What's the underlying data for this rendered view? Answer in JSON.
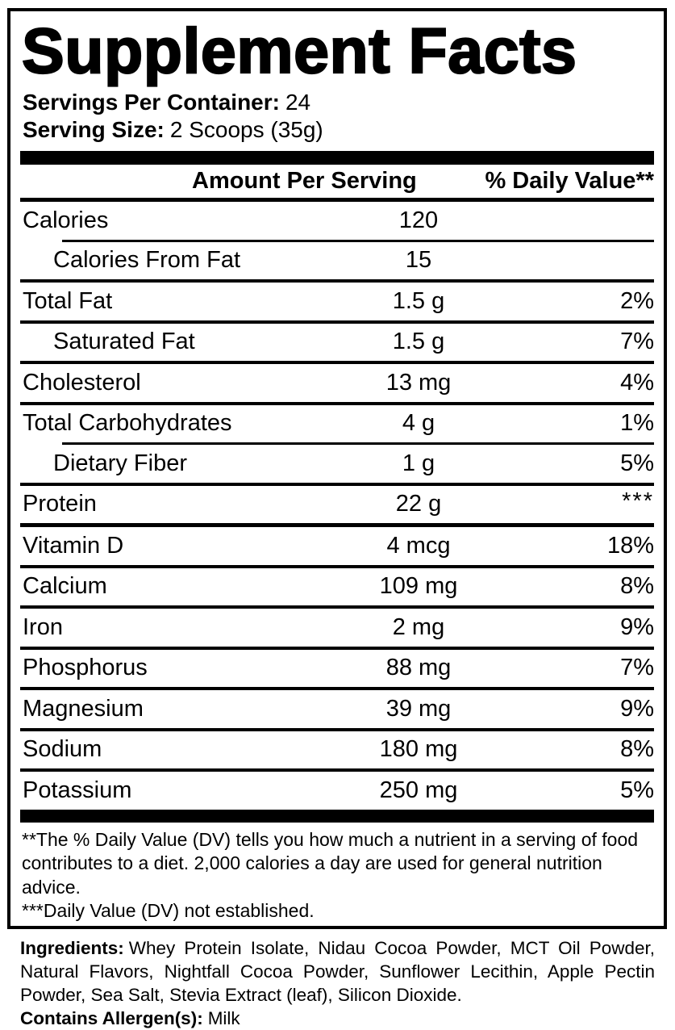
{
  "colors": {
    "ink": "#000000",
    "background": "#ffffff"
  },
  "title": "Supplement Facts",
  "serving_info": {
    "servings_label": "Servings Per Container:",
    "servings_value": "24",
    "size_label": "Serving Size:",
    "size_value": "2 Scoops (35g)"
  },
  "table": {
    "header": {
      "amount": "Amount Per Serving",
      "dv": "% Daily Value**"
    },
    "rows": [
      {
        "label": "Calories",
        "amount": "120",
        "dv": "",
        "indent": false,
        "sep": "none"
      },
      {
        "label": "Calories From Fat",
        "amount": "15",
        "dv": "",
        "indent": true,
        "sep": "indent"
      },
      {
        "label": "Total Fat",
        "amount": "1.5 g",
        "dv": "2%",
        "indent": false,
        "sep": "full"
      },
      {
        "label": "Saturated Fat",
        "amount": "1.5 g",
        "dv": "7%",
        "indent": true,
        "sep": "full"
      },
      {
        "label": "Cholesterol",
        "amount": "13 mg",
        "dv": "4%",
        "indent": false,
        "sep": "full"
      },
      {
        "label": "Total Carbohydrates",
        "amount": "4 g",
        "dv": "1%",
        "indent": false,
        "sep": "full"
      },
      {
        "label": "Dietary Fiber",
        "amount": "1 g",
        "dv": "5%",
        "indent": true,
        "sep": "indent"
      },
      {
        "label": "Protein",
        "amount": "22 g",
        "dv": "***",
        "indent": false,
        "sep": "full"
      },
      {
        "label": "Vitamin D",
        "amount": "4 mcg",
        "dv": "18%",
        "indent": false,
        "sep": "thick"
      },
      {
        "label": "Calcium",
        "amount": "109 mg",
        "dv": "8%",
        "indent": false,
        "sep": "full"
      },
      {
        "label": "Iron",
        "amount": "2 mg",
        "dv": "9%",
        "indent": false,
        "sep": "full"
      },
      {
        "label": "Phosphorus",
        "amount": "88 mg",
        "dv": "7%",
        "indent": false,
        "sep": "full"
      },
      {
        "label": "Magnesium",
        "amount": "39 mg",
        "dv": "9%",
        "indent": false,
        "sep": "full"
      },
      {
        "label": "Sodium",
        "amount": "180 mg",
        "dv": "8%",
        "indent": false,
        "sep": "full"
      },
      {
        "label": "Potassium",
        "amount": "250 mg",
        "dv": "5%",
        "indent": false,
        "sep": "full"
      }
    ]
  },
  "footnotes": [
    "**The % Daily Value (DV) tells you how much a nutrient in a serving of food contributes to a diet. 2,000 calories a day are used for general nutrition advice.",
    "***Daily Value (DV) not established."
  ],
  "ingredients": {
    "label": "Ingredients:",
    "text": "Whey Protein Isolate, Nidau Cocoa Powder, MCT Oil Powder, Natural Flavors, Nightfall Cocoa Powder, Sunflower Lecithin, Apple Pectin Powder, Sea Salt, Stevia Extract (leaf), Silicon Dioxide.",
    "allergen_label": "Contains Allergen(s):",
    "allergen_value": "Milk"
  }
}
